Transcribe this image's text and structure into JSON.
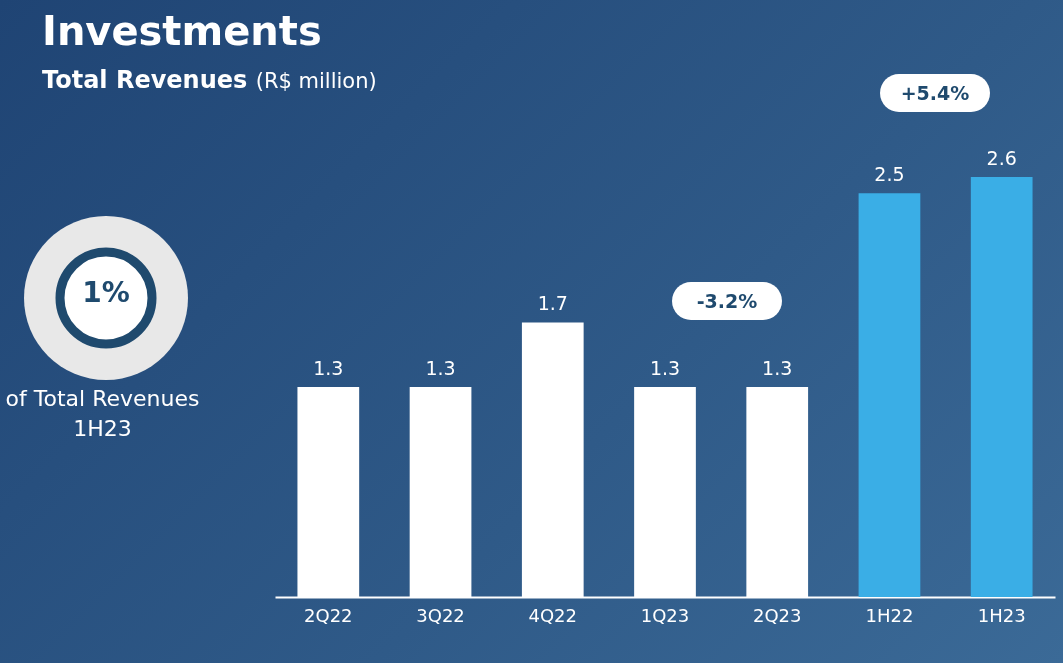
{
  "chart_data": {
    "type": "bar",
    "title": "Investments",
    "subtitle": "Total Revenues (R$ million)",
    "categories": [
      "2Q22",
      "3Q22",
      "4Q22",
      "1Q23",
      "2Q23",
      "1H22",
      "1H23"
    ],
    "values": [
      1.3,
      1.3,
      1.7,
      1.3,
      1.3,
      2.5,
      2.6
    ],
    "colors": [
      "#ffffff",
      "#ffffff",
      "#ffffff",
      "#ffffff",
      "#ffffff",
      "#3aaee6",
      "#3aaee6"
    ],
    "data_labels": true,
    "annotations": [
      "-3.2%",
      "+5.4%",
      "1%",
      "of Total Revenues 1H23"
    ]
  }
}
